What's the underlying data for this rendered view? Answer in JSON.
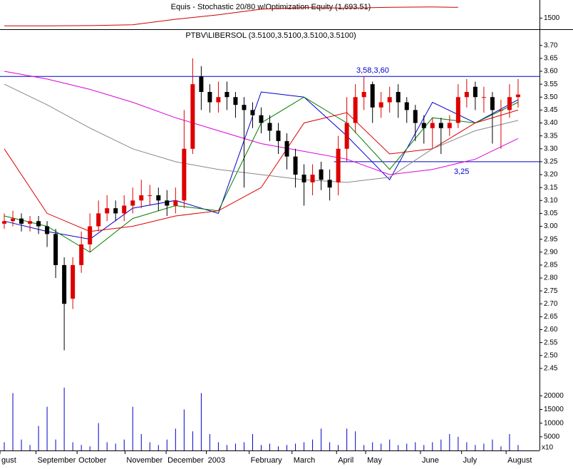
{
  "chart_data": [
    {
      "type": "line",
      "title": "Equis - Stochastic 20/80  w/Optimization Equity (1,693.51)",
      "xlim": [
        -0.5,
        62.5
      ],
      "x": [
        0,
        5,
        10,
        15,
        20,
        25,
        30,
        35,
        40,
        45,
        50,
        53
      ],
      "values": [
        1360,
        1360,
        1365,
        1380,
        1480,
        1560,
        1660,
        1690,
        1680,
        1695,
        1700,
        1693
      ],
      "color": "#cc0000",
      "ylim": [
        1300,
        1800
      ],
      "yticks": [
        1500
      ]
    },
    {
      "type": "candlestick",
      "title": "PTBV\\LIBERSOL (3.5100,3.5100,3.5100,3.5100)",
      "xlim": [
        -0.5,
        62.5
      ],
      "ylim": [
        2.4,
        3.76
      ],
      "yticks": [
        {
          "value": 3.7,
          "label": "3.70"
        },
        {
          "value": 3.65,
          "label": "3.65"
        },
        {
          "value": 3.6,
          "label": "3.60"
        },
        {
          "value": 3.55,
          "label": "3.55"
        },
        {
          "value": 3.5,
          "label": "3.50"
        },
        {
          "value": 3.45,
          "label": "3.45"
        },
        {
          "value": 3.4,
          "label": "3.40"
        },
        {
          "value": 3.35,
          "label": "3.35"
        },
        {
          "value": 3.3,
          "label": "3.30"
        },
        {
          "value": 3.25,
          "label": "3.25"
        },
        {
          "value": 3.2,
          "label": "3.20"
        },
        {
          "value": 3.15,
          "label": "3.15"
        },
        {
          "value": 3.1,
          "label": "3.10"
        },
        {
          "value": 3.05,
          "label": "3.05"
        },
        {
          "value": 3.0,
          "label": "3.00"
        },
        {
          "value": 2.95,
          "label": "2.95"
        },
        {
          "value": 2.9,
          "label": "2.90"
        },
        {
          "value": 2.85,
          "label": "2.85"
        },
        {
          "value": 2.8,
          "label": "2.80"
        },
        {
          "value": 2.75,
          "label": "2.75"
        },
        {
          "value": 2.7,
          "label": "2.70"
        },
        {
          "value": 2.65,
          "label": "2.65"
        },
        {
          "value": 2.6,
          "label": "2.60"
        },
        {
          "value": 2.55,
          "label": "2.55"
        },
        {
          "value": 2.5,
          "label": "2.50"
        },
        {
          "value": 2.45,
          "label": "2.45"
        }
      ],
      "up_color": "#dd0000",
      "down_color": "#000000",
      "open": [
        3.01,
        3.02,
        3.03,
        3.01,
        3.02,
        3.0,
        2.97,
        2.85,
        2.72,
        2.85,
        2.93,
        3.0,
        3.05,
        3.07,
        3.05,
        3.08,
        3.1,
        3.12,
        3.12,
        3.1,
        3.08,
        3.1,
        3.3,
        3.58,
        3.52,
        3.48,
        3.52,
        3.5,
        3.47,
        3.45,
        3.43,
        3.4,
        3.37,
        3.33,
        3.27,
        3.2,
        3.17,
        3.22,
        3.18,
        3.17,
        3.3,
        3.4,
        3.5,
        3.55,
        3.46,
        3.48,
        3.52,
        3.48,
        3.45,
        3.4,
        3.38,
        3.4,
        3.38,
        3.4,
        3.5,
        3.54,
        3.5,
        3.5,
        3.45,
        3.45,
        3.5
      ],
      "high": [
        3.05,
        3.06,
        3.05,
        3.04,
        3.04,
        3.02,
        2.99,
        2.88,
        2.88,
        2.98,
        3.05,
        3.1,
        3.12,
        3.1,
        3.12,
        3.15,
        3.18,
        3.16,
        3.15,
        3.14,
        3.15,
        3.45,
        3.65,
        3.62,
        3.55,
        3.56,
        3.56,
        3.52,
        3.5,
        3.48,
        3.46,
        3.43,
        3.4,
        3.36,
        3.3,
        3.24,
        3.24,
        3.25,
        3.22,
        3.35,
        3.5,
        3.55,
        3.58,
        3.56,
        3.52,
        3.54,
        3.55,
        3.5,
        3.47,
        3.43,
        3.42,
        3.42,
        3.43,
        3.55,
        3.57,
        3.56,
        3.54,
        3.52,
        3.49,
        3.55,
        3.57
      ],
      "low": [
        2.99,
        3.0,
        2.98,
        2.98,
        2.97,
        2.92,
        2.8,
        2.52,
        2.68,
        2.82,
        2.9,
        2.98,
        3.02,
        3.02,
        3.02,
        3.05,
        3.07,
        3.08,
        3.06,
        3.04,
        3.05,
        3.07,
        3.28,
        3.45,
        3.44,
        3.44,
        3.45,
        3.42,
        3.15,
        3.38,
        3.36,
        3.33,
        3.28,
        3.22,
        3.15,
        3.08,
        3.12,
        3.14,
        3.1,
        3.12,
        3.25,
        3.36,
        3.45,
        3.4,
        3.42,
        3.44,
        3.42,
        3.4,
        3.33,
        3.32,
        3.3,
        3.28,
        3.35,
        3.38,
        3.46,
        3.45,
        3.44,
        3.32,
        3.3,
        3.42,
        3.46
      ],
      "close": [
        3.02,
        3.03,
        3.01,
        3.02,
        3.0,
        2.97,
        2.85,
        2.7,
        2.85,
        2.93,
        3.0,
        3.05,
        3.07,
        3.05,
        3.08,
        3.1,
        3.12,
        3.12,
        3.1,
        3.08,
        3.1,
        3.3,
        3.55,
        3.52,
        3.48,
        3.5,
        3.5,
        3.47,
        3.45,
        3.43,
        3.4,
        3.37,
        3.33,
        3.27,
        3.2,
        3.17,
        3.2,
        3.18,
        3.15,
        3.3,
        3.4,
        3.5,
        3.52,
        3.46,
        3.48,
        3.5,
        3.48,
        3.45,
        3.4,
        3.38,
        3.4,
        3.38,
        3.4,
        3.5,
        3.52,
        3.5,
        3.5,
        3.45,
        3.45,
        3.5,
        3.51
      ],
      "lines": [
        {
          "color": "#0000cc",
          "x": [
            0,
            5,
            10,
            15,
            20,
            25,
            30,
            35,
            40,
            45,
            50,
            55,
            60
          ],
          "values": [
            3.02,
            2.98,
            2.95,
            3.07,
            3.1,
            3.05,
            3.52,
            3.5,
            3.35,
            3.18,
            3.48,
            3.4,
            3.49
          ]
        },
        {
          "color": "#008000",
          "x": [
            0,
            5,
            10,
            15,
            20,
            25,
            30,
            35,
            40,
            45,
            50,
            55,
            60
          ],
          "values": [
            3.04,
            3.0,
            2.9,
            3.03,
            3.08,
            3.06,
            3.4,
            3.5,
            3.4,
            3.22,
            3.42,
            3.4,
            3.48
          ]
        },
        {
          "color": "#dd0000",
          "x": [
            0,
            5,
            10,
            15,
            20,
            25,
            30,
            35,
            40,
            45,
            50,
            55,
            60
          ],
          "values": [
            3.3,
            3.05,
            2.98,
            3.0,
            3.04,
            3.06,
            3.15,
            3.4,
            3.44,
            3.28,
            3.3,
            3.4,
            3.45
          ]
        },
        {
          "color": "#888888",
          "x": [
            0,
            5,
            10,
            15,
            20,
            25,
            30,
            35,
            40,
            45,
            50,
            55,
            60
          ],
          "values": [
            3.55,
            3.47,
            3.38,
            3.3,
            3.25,
            3.22,
            3.2,
            3.18,
            3.17,
            3.19,
            3.3,
            3.37,
            3.41
          ]
        },
        {
          "color": "#dd00dd",
          "x": [
            0,
            5,
            10,
            15,
            20,
            25,
            30,
            35,
            40,
            45,
            50,
            55,
            60
          ],
          "values": [
            3.6,
            3.57,
            3.53,
            3.48,
            3.42,
            3.37,
            3.32,
            3.29,
            3.26,
            3.2,
            3.22,
            3.26,
            3.34
          ]
        }
      ],
      "hlines": [
        {
          "value": 3.58,
          "label": "3,58,3,60",
          "color": "#0000cc",
          "xrange": [
            -0.5,
            62.5
          ]
        },
        {
          "value": 3.25,
          "label": "3,25",
          "color": "#0000cc",
          "xrange": [
            38.5,
            62.5
          ]
        }
      ]
    },
    {
      "type": "bar",
      "xlim": [
        -0.5,
        62.5
      ],
      "xticks": [
        {
          "value": -0.5,
          "label": "gust"
        },
        {
          "value": 3.7,
          "label": "September"
        },
        {
          "value": 8.5,
          "label": "October"
        },
        {
          "value": 14.1,
          "label": "November"
        },
        {
          "value": 18.9,
          "label": "December"
        },
        {
          "value": 23.6,
          "label": "2003"
        },
        {
          "value": 28.6,
          "label": "February"
        },
        {
          "value": 33.6,
          "label": "March"
        },
        {
          "value": 38.8,
          "label": "April"
        },
        {
          "value": 42.2,
          "label": "May"
        },
        {
          "value": 48.6,
          "label": "June"
        },
        {
          "value": 53.4,
          "label": "July"
        },
        {
          "value": 58.6,
          "label": "August"
        }
      ],
      "values": [
        3000,
        21000,
        4000,
        2000,
        9000,
        16000,
        4000,
        23000,
        3000,
        2000,
        1500,
        10000,
        3000,
        2500,
        4000,
        16000,
        6000,
        3000,
        2000,
        4000,
        8000,
        15000,
        7000,
        21000,
        6000,
        3000,
        2000,
        2500,
        3000,
        6000,
        2000,
        2500,
        1500,
        2000,
        2500,
        3000,
        4000,
        8000,
        3000,
        2000,
        8000,
        7000,
        2000,
        3000,
        2500,
        4000,
        2000,
        2500,
        3000,
        2000,
        3000,
        4000,
        6000,
        5000,
        3000,
        2000,
        2500,
        4000,
        1500,
        6000,
        2000
      ],
      "color": "#0000cc",
      "ylim": [
        0,
        24000
      ],
      "yticks": [
        5000,
        10000,
        15000,
        20000
      ],
      "note": "x10"
    }
  ]
}
